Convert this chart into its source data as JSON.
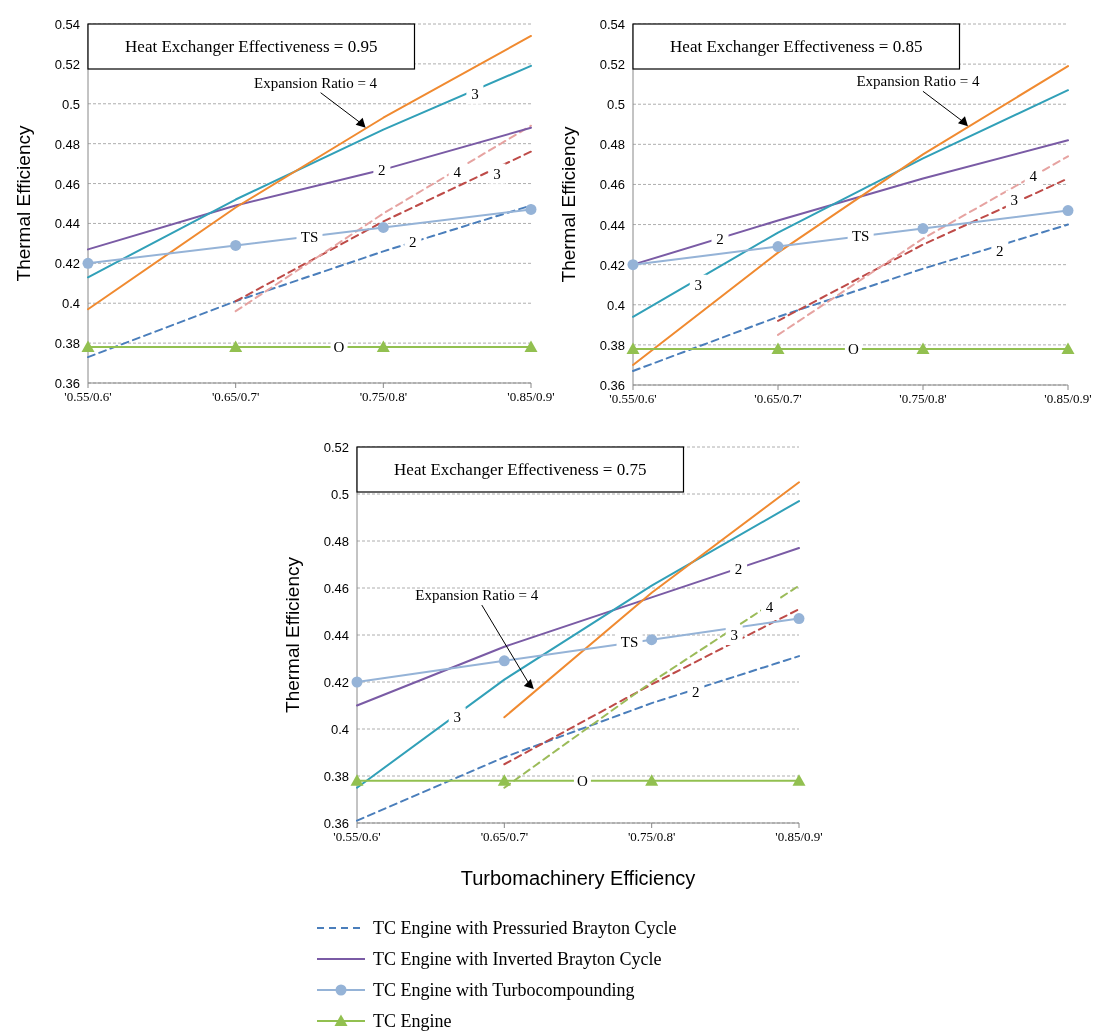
{
  "chart_data": [
    {
      "type": "line",
      "title": "Heat Exchanger Effectiveness = 0.95",
      "ylabel": "Thermal Efficiency",
      "categories": [
        "'0.55/0.6'",
        "'0.65/0.7'",
        "'0.75/0.8'",
        "'0.85/0.9'"
      ],
      "ylim": [
        0.36,
        0.54
      ],
      "yticks": [
        0.36,
        0.38,
        0.4,
        0.42,
        0.44,
        0.46,
        0.48,
        0.5,
        0.52,
        0.54
      ],
      "grid": "y",
      "legend": false,
      "series": [
        {
          "color": "#4a7ebb",
          "line_style": "dashed",
          "marker": "none",
          "values": [
            0.373,
            0.401,
            0.426,
            0.449
          ]
        },
        {
          "color": "#be4b48",
          "line_style": "dashed",
          "marker": "none",
          "values": [
            null,
            0.401,
            0.441,
            0.476
          ]
        },
        {
          "color": "#e6a3a1",
          "line_style": "dashed",
          "marker": "none",
          "values": [
            null,
            0.396,
            0.445,
            0.489
          ]
        },
        {
          "color": "#7a5ba5",
          "line_style": "solid",
          "marker": "none",
          "values": [
            0.427,
            0.449,
            0.467,
            0.488
          ]
        },
        {
          "color": "#31a0b8",
          "line_style": "solid",
          "marker": "none",
          "values": [
            0.413,
            0.452,
            0.487,
            0.519
          ]
        },
        {
          "color": "#f08a30",
          "line_style": "solid",
          "marker": "none",
          "values": [
            0.397,
            0.448,
            0.493,
            0.534
          ]
        },
        {
          "color": "#95b3d7",
          "line_style": "solid",
          "marker": "circle",
          "values": [
            0.42,
            0.429,
            0.438,
            0.447
          ]
        },
        {
          "color": "#92c050",
          "line_style": "solid",
          "marker": "triangle",
          "values": [
            0.378,
            0.378,
            0.378,
            0.378
          ]
        }
      ],
      "annotations": [
        "Expansion Ratio = 4",
        "3",
        "2",
        "4",
        "3",
        "TS",
        "2",
        "O"
      ]
    },
    {
      "type": "line",
      "title": "Heat Exchanger Effectiveness = 0.85",
      "ylabel": "Thermal Efficiency",
      "categories": [
        "'0.55/0.6'",
        "'0.65/0.7'",
        "'0.75/0.8'",
        "'0.85/0.9'"
      ],
      "ylim": [
        0.36,
        0.54
      ],
      "yticks": [
        0.36,
        0.38,
        0.4,
        0.42,
        0.44,
        0.46,
        0.48,
        0.5,
        0.52,
        0.54
      ],
      "grid": "y",
      "legend": false,
      "series": [
        {
          "color": "#4a7ebb",
          "line_style": "dashed",
          "marker": "none",
          "values": [
            0.367,
            0.394,
            0.418,
            0.44
          ]
        },
        {
          "color": "#be4b48",
          "line_style": "dashed",
          "marker": "none",
          "values": [
            null,
            0.392,
            0.43,
            0.463
          ]
        },
        {
          "color": "#e6a3a1",
          "line_style": "dashed",
          "marker": "none",
          "values": [
            null,
            0.385,
            0.433,
            0.474
          ]
        },
        {
          "color": "#7a5ba5",
          "line_style": "solid",
          "marker": "none",
          "values": [
            0.42,
            0.442,
            0.463,
            0.482
          ]
        },
        {
          "color": "#31a0b8",
          "line_style": "solid",
          "marker": "none",
          "values": [
            0.394,
            0.436,
            0.473,
            0.507
          ]
        },
        {
          "color": "#f08a30",
          "line_style": "solid",
          "marker": "none",
          "values": [
            0.37,
            0.426,
            0.475,
            0.519
          ]
        },
        {
          "color": "#95b3d7",
          "line_style": "solid",
          "marker": "circle",
          "values": [
            0.42,
            0.429,
            0.438,
            0.447
          ]
        },
        {
          "color": "#92c050",
          "line_style": "solid",
          "marker": "triangle",
          "values": [
            0.378,
            0.378,
            0.378,
            0.378
          ]
        }
      ],
      "annotations": [
        "Expansion Ratio = 4",
        "2",
        "3",
        "TS",
        "4",
        "3",
        "2",
        "O"
      ]
    },
    {
      "type": "line",
      "title": "Heat Exchanger Effectiveness = 0.75",
      "xlabel": "Turbomachinery Efficiency",
      "ylabel": "Thermal Efficiency",
      "categories": [
        "'0.55/0.6'",
        "'0.65/0.7'",
        "'0.75/0.8'",
        "'0.85/0.9'"
      ],
      "ylim": [
        0.36,
        0.52
      ],
      "yticks": [
        0.36,
        0.38,
        0.4,
        0.42,
        0.44,
        0.46,
        0.48,
        0.5,
        0.52
      ],
      "grid": "y",
      "legend": "bottom",
      "series": [
        {
          "name": "TC Engine with Pressuried Brayton Cycle",
          "color": "#4a7ebb",
          "line_style": "dashed",
          "marker": "none",
          "values": [
            0.361,
            0.388,
            0.411,
            0.431
          ]
        },
        {
          "color": "#be4b48",
          "line_style": "dashed",
          "marker": "none",
          "values": [
            null,
            0.385,
            0.419,
            0.451
          ]
        },
        {
          "color": "#9bbb59",
          "line_style": "dashed",
          "marker": "none",
          "values": [
            null,
            0.375,
            0.42,
            0.461
          ]
        },
        {
          "name": "TC Engine with Inverted Brayton Cycle",
          "color": "#7a5ba5",
          "line_style": "solid",
          "marker": "none",
          "values": [
            0.41,
            0.435,
            0.456,
            0.477
          ]
        },
        {
          "color": "#31a0b8",
          "line_style": "solid",
          "marker": "none",
          "values": [
            0.375,
            0.421,
            0.461,
            0.497
          ]
        },
        {
          "color": "#f08a30",
          "line_style": "solid",
          "marker": "none",
          "values": [
            null,
            0.405,
            0.458,
            0.505
          ]
        },
        {
          "name": "TC Engine with Turbocompounding",
          "color": "#95b3d7",
          "line_style": "solid",
          "marker": "circle",
          "values": [
            0.42,
            0.429,
            0.438,
            0.447
          ]
        },
        {
          "name": "TC Engine",
          "color": "#92c050",
          "line_style": "solid",
          "marker": "triangle",
          "values": [
            0.378,
            0.378,
            0.378,
            0.378
          ]
        }
      ],
      "annotations": [
        "Expansion Ratio = 4",
        "2",
        "4",
        "3",
        "TS",
        "2",
        "3",
        "O"
      ]
    }
  ]
}
